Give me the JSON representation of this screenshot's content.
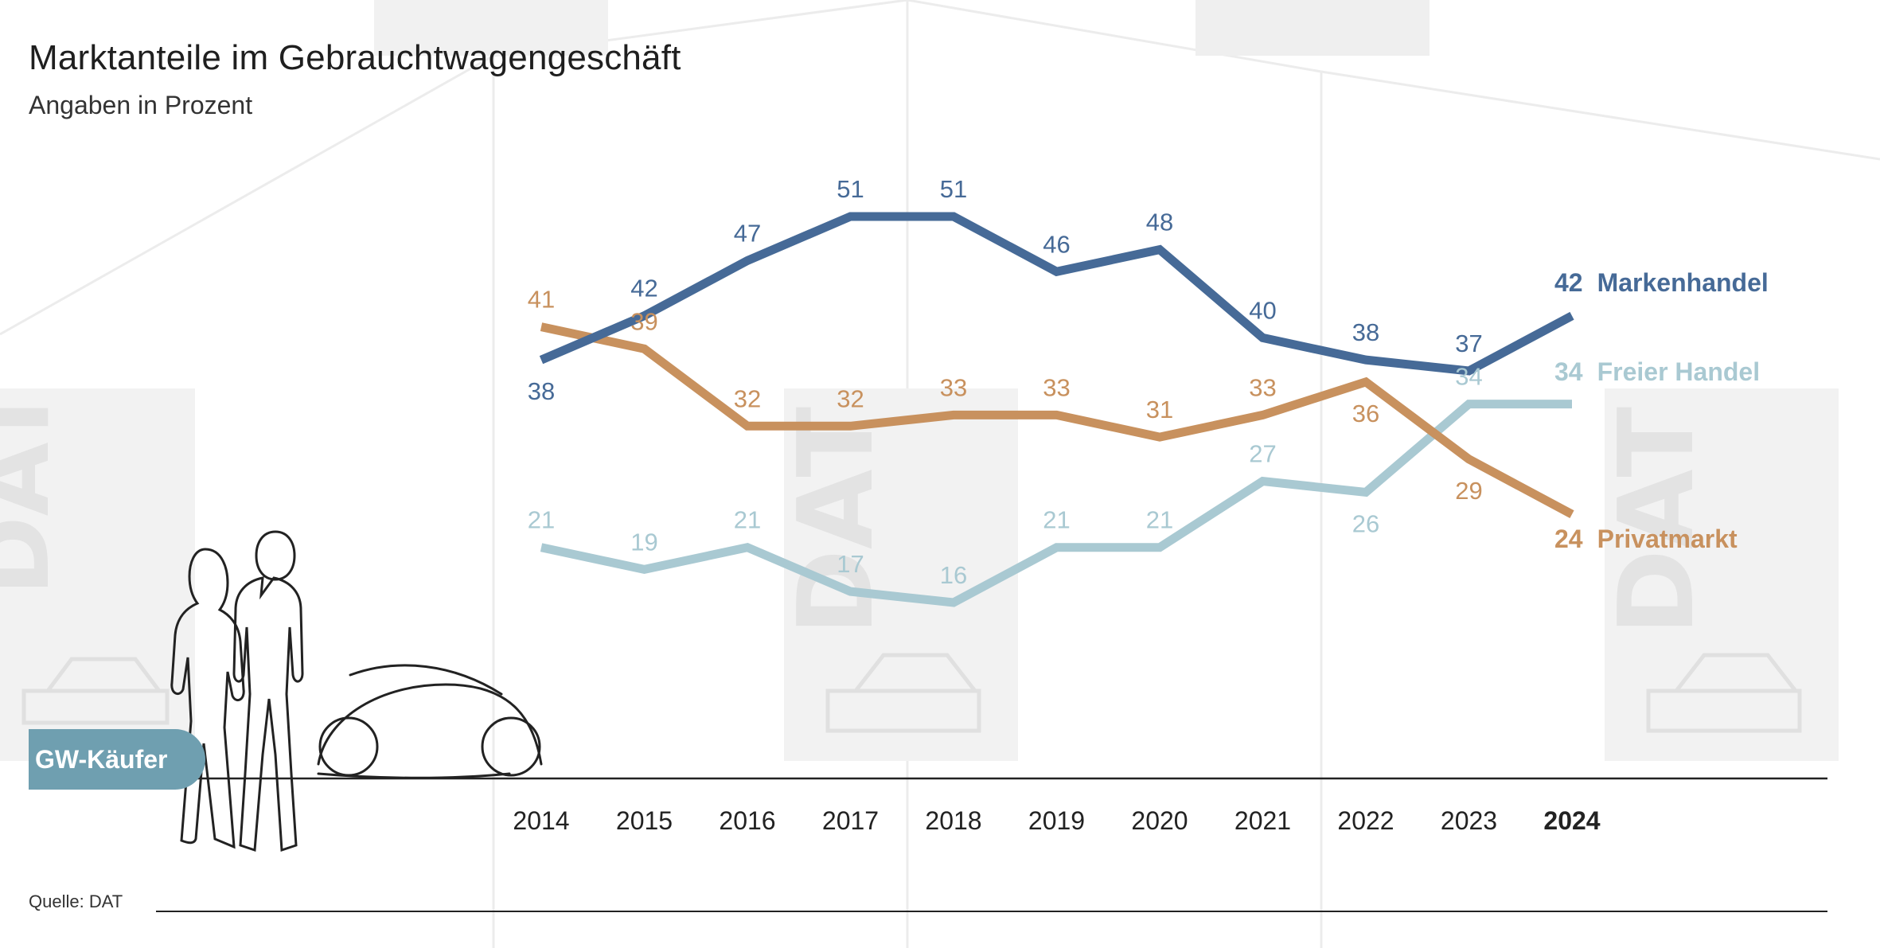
{
  "title": "Marktanteile im Gebrauchtwagengeschäft",
  "subtitle": "Angaben in Prozent",
  "source": "Quelle: DAT",
  "badge": "GW-Käufer",
  "watermark_text": "DAT",
  "colors": {
    "markenhandel": "#466a97",
    "privatmarkt": "#c8915e",
    "freier_handel": "#a9c9d2"
  },
  "chart_data": {
    "type": "line",
    "title": "Marktanteile im Gebrauchtwagengeschäft",
    "subtitle": "Angaben in Prozent",
    "categories": [
      "2014",
      "2015",
      "2016",
      "2017",
      "2018",
      "2019",
      "2020",
      "2021",
      "2022",
      "2023",
      "2024"
    ],
    "highlight_category": "2024",
    "ylim": [
      10,
      56
    ],
    "grid": false,
    "legend": "end-of-line labels on the right",
    "series": [
      {
        "name": "Markenhandel",
        "color": "#466a97",
        "values": [
          38,
          42,
          47,
          51,
          51,
          46,
          48,
          40,
          38,
          37,
          42
        ]
      },
      {
        "name": "Privatmarkt",
        "color": "#c8915e",
        "values": [
          41,
          39,
          32,
          32,
          33,
          33,
          31,
          33,
          36,
          29,
          24
        ]
      },
      {
        "name": "Freier Handel",
        "color": "#a9c9d2",
        "values": [
          21,
          19,
          21,
          17,
          16,
          21,
          21,
          27,
          26,
          34,
          34
        ]
      }
    ]
  }
}
